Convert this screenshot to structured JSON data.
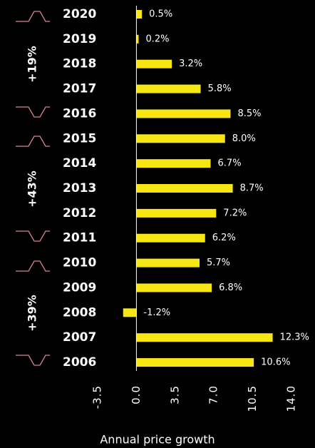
{
  "chart_data": {
    "type": "bar",
    "orientation": "horizontal",
    "categories": [
      "2020",
      "2019",
      "2018",
      "2017",
      "2016",
      "2015",
      "2014",
      "2013",
      "2012",
      "2011",
      "2010",
      "2009",
      "2008",
      "2007",
      "2006"
    ],
    "values": [
      0.5,
      0.2,
      3.2,
      5.8,
      8.5,
      8.0,
      6.7,
      8.7,
      7.2,
      6.2,
      5.7,
      6.8,
      -1.2,
      12.3,
      10.6
    ],
    "value_labels": [
      "0.5%",
      "0.2%",
      "3.2%",
      "5.8%",
      "8.5%",
      "8.0%",
      "6.7%",
      "8.7%",
      "7.2%",
      "6.2%",
      "5.7%",
      "6.8%",
      "-1.2%",
      "12.3%",
      "10.6%"
    ],
    "color": "#f5e614",
    "xlim": [
      -3.5,
      14.0
    ],
    "xticks": [
      -3.5,
      {
        "value": 0,
        "label": "0.0"
      },
      3.5,
      {
        "value": 7,
        "label": "7.0"
      },
      10.5,
      {
        "value": 14,
        "label": "14.0"
      }
    ],
    "xlabel": "Annual price growth",
    "annotations": [
      "+19%",
      "+43%",
      "+39%"
    ]
  }
}
